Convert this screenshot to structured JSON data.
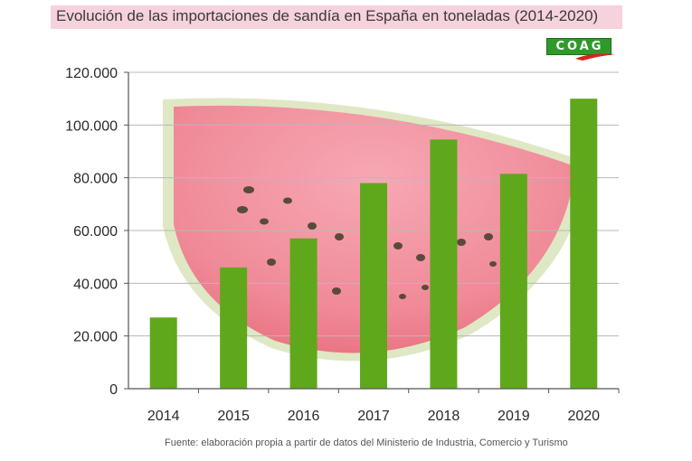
{
  "header": {
    "title": "Evolución de las importaciones de sandía en España en toneladas (2014-2020)"
  },
  "logo": {
    "text": "COAG"
  },
  "source": "Fuente: elaboración propia a partir de datos del Ministerio de Industria, Comercio y Turismo",
  "chart_data": {
    "type": "bar",
    "title": "Evolución de las importaciones de sandía en España en toneladas (2014-2020)",
    "categories": [
      "2014",
      "2015",
      "2016",
      "2017",
      "2018",
      "2019",
      "2020"
    ],
    "values": [
      27000,
      46000,
      57000,
      78000,
      94500,
      81500,
      110000
    ],
    "xlabel": "",
    "ylabel": "",
    "ylim": [
      0,
      120000
    ],
    "yticks": [
      0,
      20000,
      40000,
      60000,
      80000,
      100000,
      120000
    ],
    "ytick_labels": [
      "0",
      "20.000",
      "40.000",
      "60.000",
      "80.000",
      "100.000",
      "120.000"
    ],
    "grid": true,
    "legend": "none",
    "bar_color": "#5fa81c"
  }
}
